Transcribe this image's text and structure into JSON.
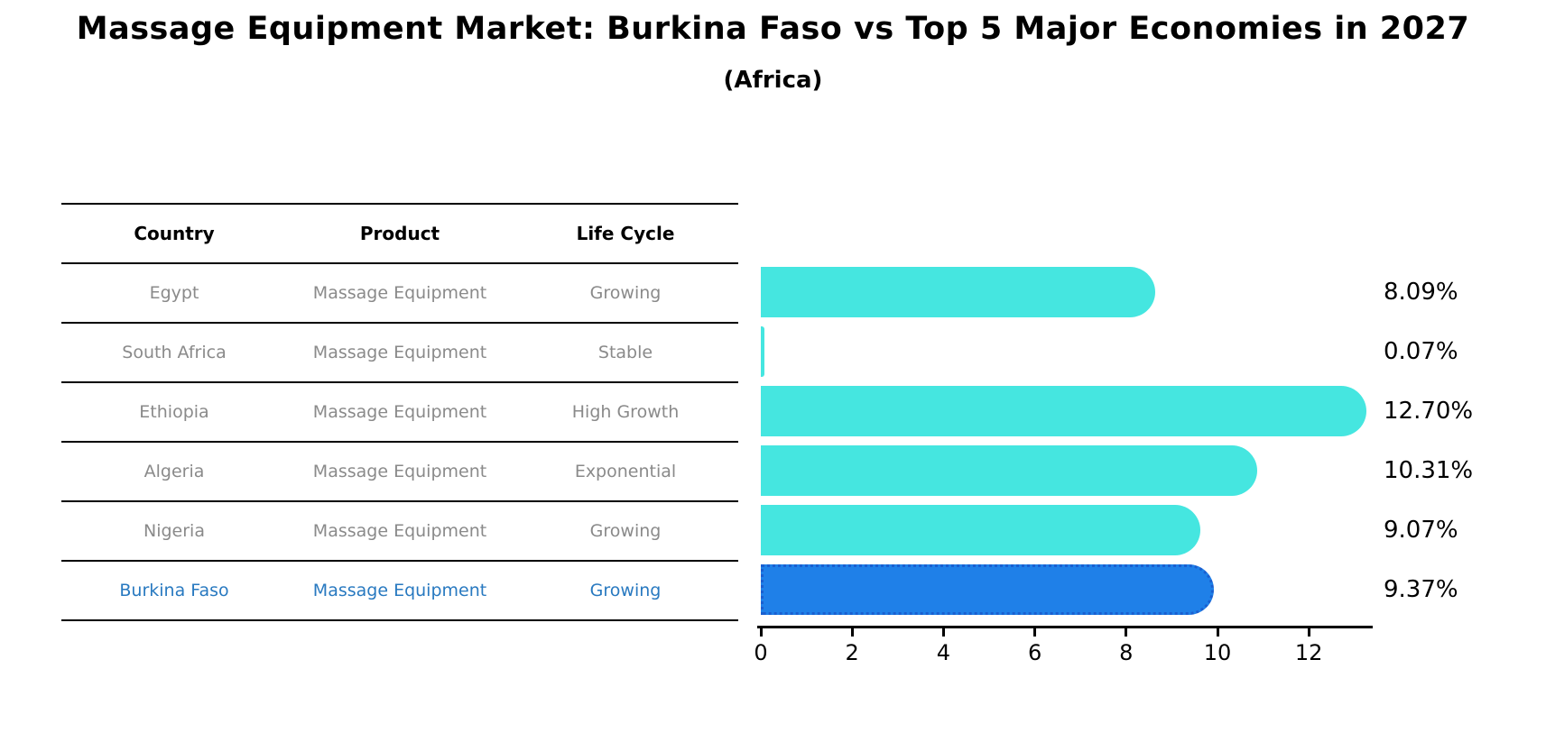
{
  "title": "Massage Equipment Market: Burkina Faso vs Top 5 Major Economies in 2027",
  "subtitle": "(Africa)",
  "colors": {
    "bar_default": "#45e6e0",
    "bar_highlight": "#1f80e8",
    "bar_highlight_edge": "#1a5fd0",
    "highlight_text": "#2879c0",
    "row_text": "#8a8a8a",
    "header_text": "#000000",
    "axis": "#000000"
  },
  "table": {
    "headers": [
      "Country",
      "Product",
      "Life Cycle"
    ],
    "rows": [
      {
        "country": "Egypt",
        "product": "Massage Equipment",
        "life_cycle": "Growing",
        "highlight": false
      },
      {
        "country": "South Africa",
        "product": "Massage Equipment",
        "life_cycle": "Stable",
        "highlight": false
      },
      {
        "country": "Ethiopia",
        "product": "Massage Equipment",
        "life_cycle": "High Growth",
        "highlight": false
      },
      {
        "country": "Algeria",
        "product": "Massage Equipment",
        "life_cycle": "Exponential",
        "highlight": false
      },
      {
        "country": "Nigeria",
        "product": "Massage Equipment",
        "life_cycle": "Growing",
        "highlight": false
      },
      {
        "country": "Burkina Faso",
        "product": "Massage Equipment",
        "life_cycle": "Growing",
        "highlight": true
      }
    ]
  },
  "chart_data": {
    "type": "bar",
    "orientation": "horizontal",
    "title": "Massage Equipment Market: Burkina Faso vs Top 5 Major Economies in 2027",
    "subtitle": "(Africa)",
    "categories": [
      "Egypt",
      "South Africa",
      "Ethiopia",
      "Algeria",
      "Nigeria",
      "Burkina Faso"
    ],
    "values": [
      8.09,
      0.07,
      12.7,
      10.31,
      9.07,
      9.37
    ],
    "value_labels": [
      "8.09%",
      "0.07%",
      "12.70%",
      "10.31%",
      "9.07%",
      "9.37%"
    ],
    "highlight_index": 5,
    "xlabel": "",
    "ylabel": "",
    "xlim": [
      0,
      13.4
    ],
    "xticks": [
      0,
      2,
      4,
      6,
      8,
      10,
      12
    ],
    "grid": false,
    "legend": false
  }
}
